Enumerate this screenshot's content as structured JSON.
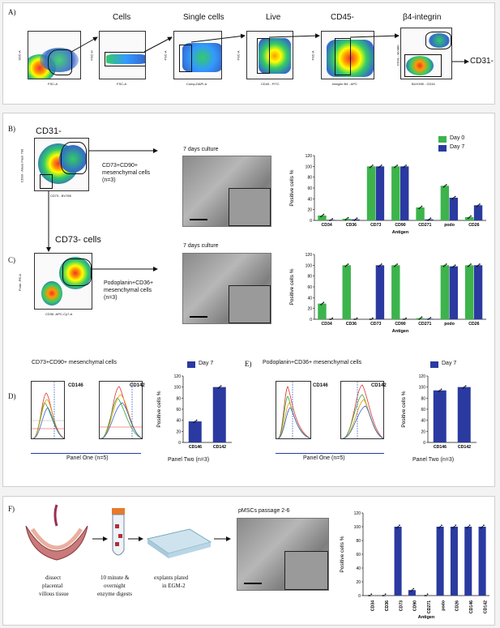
{
  "panelA": {
    "label": "A)",
    "gate_titles": [
      "Cells",
      "Single cells",
      "Live",
      "CD45-",
      "β4-integrin"
    ],
    "end_label": "CD31-",
    "plots": [
      {
        "x": "FSC-A",
        "y": "SSC-A"
      },
      {
        "x": "FSC-A",
        "y": "FSC-H"
      },
      {
        "x": "Comp-DAPI-A",
        "y": "FSC-A"
      },
      {
        "x": "CD43 - FITC",
        "y": "FSC-A"
      },
      {
        "x": "Integrin B4 - APC",
        "y": "FSC-A"
      },
      {
        "x": "BUV395 - CD34",
        "y": "CD31 - BV480"
      }
    ]
  },
  "panelB": {
    "label": "B)",
    "gate_title": "CD31-",
    "plot_x": "CD73 - BV785",
    "plot_y": "CD90 - Alexa Fluor 700",
    "population": [
      "CD73+CD90+",
      "mesenchymal cells",
      "(n=3)"
    ],
    "culture": "7 days culture",
    "legend": [
      {
        "name": "Day 0",
        "color": "#3cb44b"
      },
      {
        "name": "Day 7",
        "color": "#2a3aa0"
      }
    ]
  },
  "panelC": {
    "label": "C)",
    "gate_title": "CD73- cells",
    "plot_x": "CD36 -APC-Cy7-A",
    "plot_y": "Podo -PE-A",
    "population": [
      "Podoplanin+CD36+",
      "mesenchymal cells",
      "(n=3)"
    ],
    "culture": "7 days culture"
  },
  "panelD": {
    "label": "D)",
    "title": "CD73+CD90+ mesenchymal cells",
    "hist": [
      "CD146",
      "CD142"
    ],
    "panel_one": "Panel One (n=5)",
    "panel_two": "Panel Two (n=3)",
    "legend": "Day 7"
  },
  "panelE": {
    "label": "E)",
    "title": "Podoplanin+CD36+ mesenchymal cells",
    "hist": [
      "CD146",
      "CD142"
    ],
    "panel_one": "Panel One (n=5)",
    "panel_two": "Panel Two (n=3)",
    "legend": "Day 7"
  },
  "panelF": {
    "label": "F)",
    "steps": [
      [
        "dissect",
        "placental",
        "villous tissue"
      ],
      [
        "10 minute &",
        "overnight",
        "enzyme digests"
      ],
      [
        "explants plated",
        "in EGM-2"
      ]
    ],
    "culture": "pMSCs passage 2-6"
  },
  "chart_data": [
    {
      "type": "bar",
      "id": "B",
      "categories": [
        "CD34",
        "CD36",
        "CD73",
        "CD90",
        "CD271",
        "podo",
        "CD26"
      ],
      "series": [
        {
          "name": "Day 0",
          "values": [
            9,
            3,
            100,
            100,
            24,
            64,
            6
          ]
        },
        {
          "name": "Day 7",
          "values": [
            1,
            2,
            100,
            100,
            2,
            42,
            28
          ]
        }
      ],
      "xlabel": "Antigen",
      "ylabel": "Positive cells %",
      "ylim": [
        0,
        120
      ],
      "yticks": [
        0,
        20,
        40,
        60,
        80,
        100,
        120
      ]
    },
    {
      "type": "bar",
      "id": "C",
      "categories": [
        "CD34",
        "CD36",
        "CD73",
        "CD90",
        "CD271",
        "podo",
        "CD26"
      ],
      "series": [
        {
          "name": "Day 0",
          "values": [
            29,
            100,
            0,
            100,
            2,
            100,
            100
          ]
        },
        {
          "name": "Day 7",
          "values": [
            0,
            0,
            100,
            0,
            1,
            98,
            100
          ]
        }
      ],
      "xlabel": "Antigen",
      "ylabel": "Positive cells %",
      "ylim": [
        0,
        120
      ],
      "yticks": [
        0,
        20,
        40,
        60,
        80,
        100,
        120
      ]
    },
    {
      "type": "bar",
      "id": "D",
      "categories": [
        "CD146",
        "CD142"
      ],
      "series": [
        {
          "name": "Day 7",
          "values": [
            38,
            100
          ]
        }
      ],
      "ylabel": "Positive cells %",
      "ylim": [
        0,
        120
      ],
      "yticks": [
        0,
        20,
        40,
        60,
        80,
        100,
        120
      ]
    },
    {
      "type": "bar",
      "id": "E",
      "categories": [
        "CD146",
        "CD142"
      ],
      "series": [
        {
          "name": "Day 7",
          "values": [
            94,
            100
          ]
        }
      ],
      "ylabel": "Positive cells %",
      "ylim": [
        0,
        120
      ],
      "yticks": [
        0,
        20,
        40,
        60,
        80,
        100,
        120
      ]
    },
    {
      "type": "bar",
      "id": "F",
      "categories": [
        "CD34",
        "CD36",
        "CD73",
        "CD90",
        "CD271",
        "podo",
        "CD26",
        "CD146",
        "CD142"
      ],
      "series": [
        {
          "name": "pMSCs",
          "values": [
            0,
            0,
            100,
            8,
            0,
            100,
            100,
            100,
            100
          ]
        }
      ],
      "xlabel": "Antigen",
      "ylabel": "Positive cells %",
      "ylim": [
        0,
        120
      ],
      "yticks": [
        0,
        20,
        40,
        60,
        80,
        100,
        120
      ]
    }
  ]
}
